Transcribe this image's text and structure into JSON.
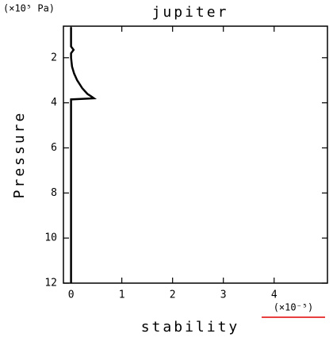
{
  "chart_data": {
    "type": "line",
    "title": "jupiter",
    "x_label": "stability",
    "y_label": "Pressure",
    "y_unit": "(×10⁵ Pa)",
    "x_unit": "(×10⁻⁵)",
    "x": [
      0,
      0,
      0.05,
      0,
      0,
      0.02,
      0.06,
      0.12,
      0.22,
      0.32,
      0.4,
      0.45,
      0,
      0
    ],
    "series": [
      {
        "color": "#000000",
        "values": [
          0.65,
          1.5,
          1.65,
          1.8,
          2.0,
          2.4,
          2.7,
          3.0,
          3.35,
          3.6,
          3.72,
          3.8,
          3.85,
          12
        ]
      }
    ],
    "xlim": [
      -0.15,
      5.05
    ],
    "xticks": [
      0,
      1,
      2,
      3,
      4
    ],
    "ylim": [
      0.6,
      12
    ],
    "yticks": [
      2,
      4,
      6,
      8,
      10,
      12
    ],
    "y_inverted": true
  }
}
